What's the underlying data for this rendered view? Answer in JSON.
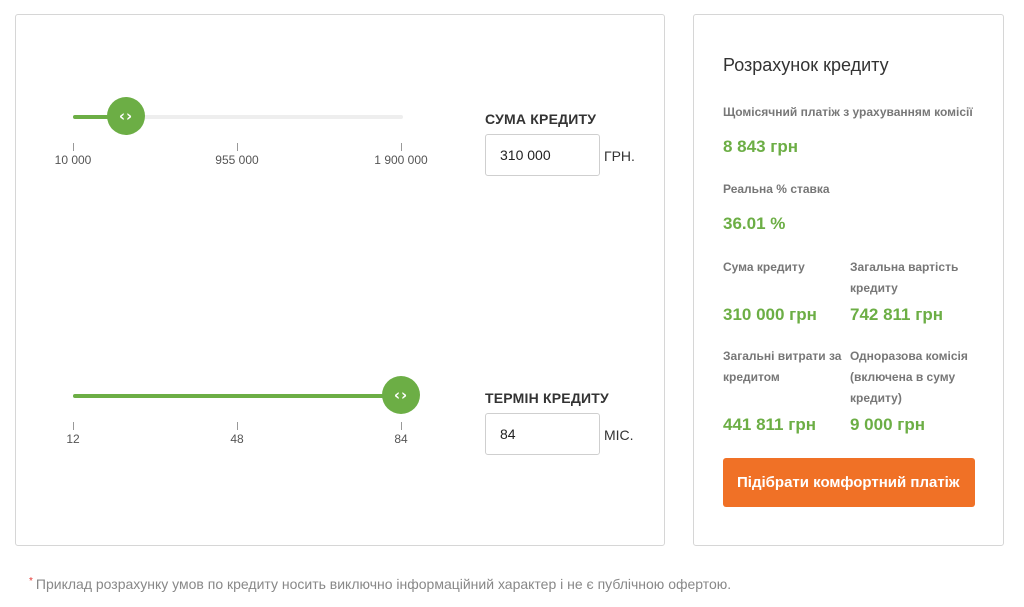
{
  "colors": {
    "accent_green": "#6cae45",
    "button_orange": "#f07126",
    "border": "#d6d6d6"
  },
  "loan_amount": {
    "label": "СУМА КРЕДИТУ",
    "value": "310 000",
    "unit": "ГРН.",
    "slider_fraction": 0.16,
    "ticks": [
      "10 000",
      "955 000",
      "1 900 000"
    ],
    "thumb_icon": "chevron-left-right-icon"
  },
  "loan_term": {
    "label": "ТЕРМІН КРЕДИТУ",
    "value": "84",
    "unit": "МІС.",
    "slider_fraction": 1.0,
    "ticks": [
      "12",
      "48",
      "84"
    ],
    "thumb_icon": "chevron-left-right-icon"
  },
  "summary": {
    "title": "Розрахунок кредиту",
    "monthly_payment_label": "Щомісячний платіж з урахуванням комісії",
    "monthly_payment_value": "8 843 грн",
    "real_rate_label": "Реальна % ставка",
    "real_rate_value": "36.01 %",
    "loan_sum_label": "Сума кредиту",
    "loan_sum_value": "310 000 грн",
    "total_cost_label_1": "Загальна вартість",
    "total_cost_label_2": "кредиту",
    "total_cost_value": "742 811 грн",
    "total_expenses_label_1": "Загальні витрати за",
    "total_expenses_label_2": "кредитом",
    "total_expenses_value": "441 811 грн",
    "one_time_fee_label_1": "Одноразова комісія",
    "one_time_fee_label_2": "(включена в суму",
    "one_time_fee_label_3": "кредиту)",
    "one_time_fee_value": "9 000 грн",
    "button_label": "Підібрати комфортний платіж"
  },
  "footnote": {
    "star": "*",
    "text": "Приклад розрахунку умов по кредиту носить виключно інформаційний характер і не є публічною офертою."
  }
}
